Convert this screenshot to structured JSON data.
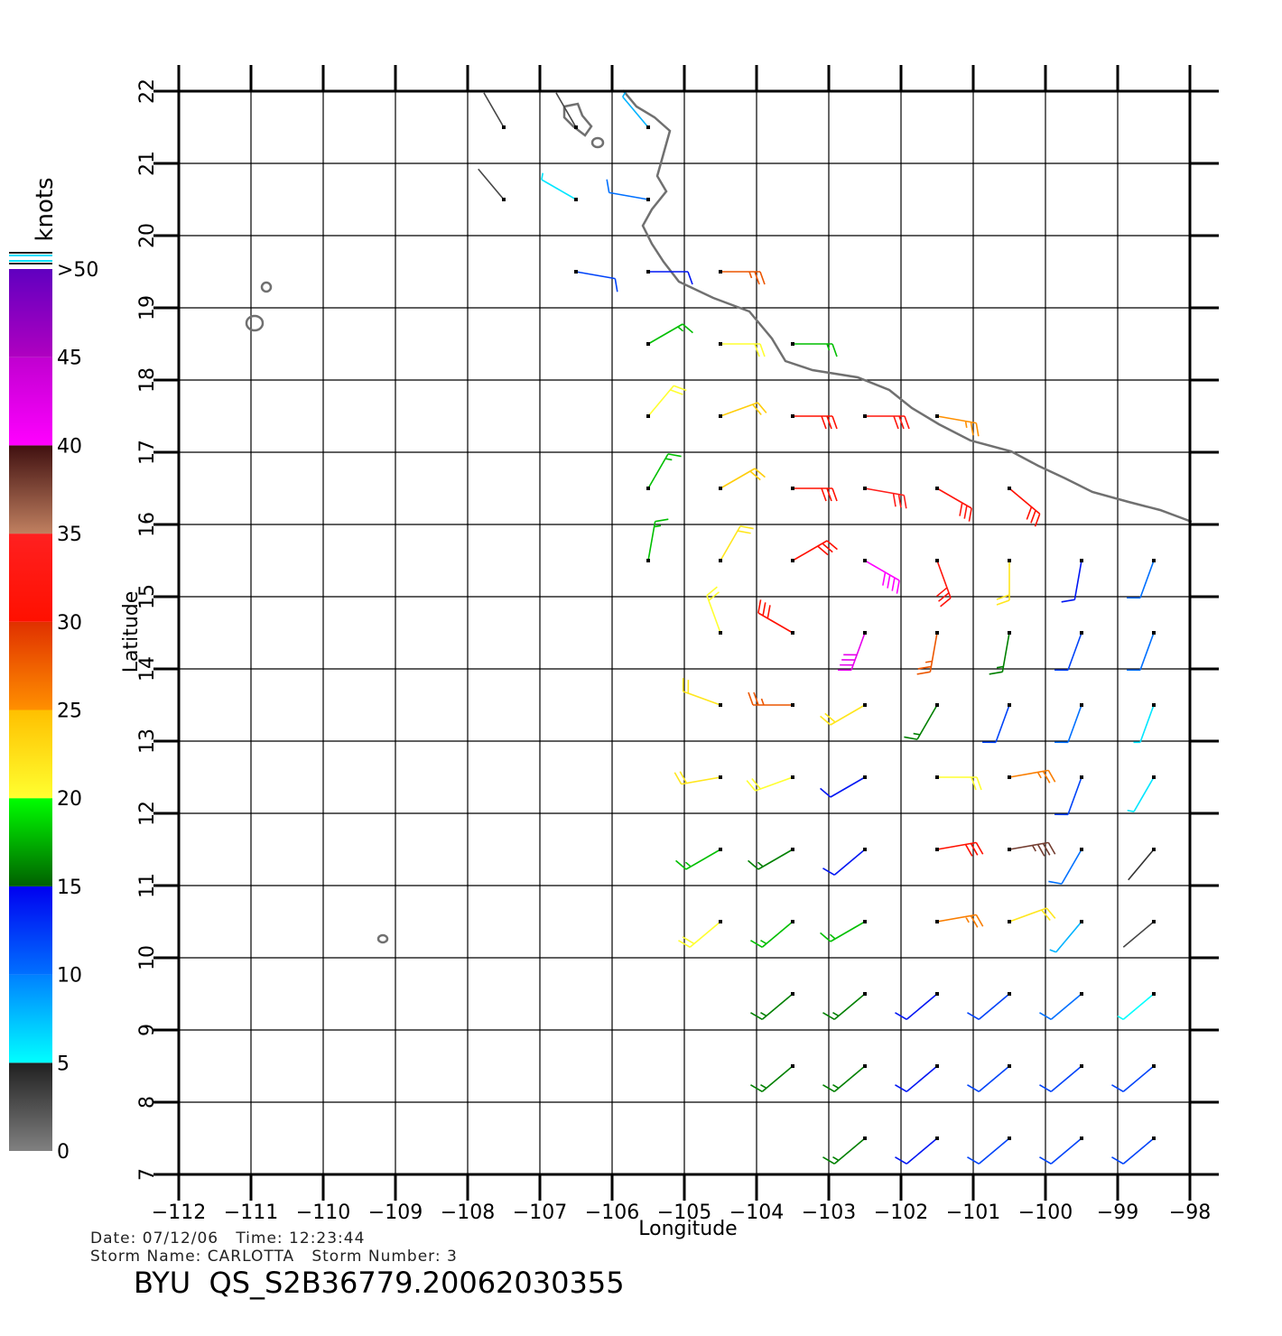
{
  "header": {
    "date_line": "Date: 07/12/06   Time: 12:23:44",
    "storm_line": "Storm Name: CARLOTTA   Storm Number: 3",
    "product": "BYU  QS_S2B36779.20062030355"
  },
  "map": {
    "xlabel": "Longitude",
    "ylabel": "Latitude",
    "xlim": [
      -112,
      -98
    ],
    "ylim": [
      7,
      22
    ],
    "xticks": [
      -112,
      -111,
      -110,
      -109,
      -108,
      -107,
      -106,
      -105,
      -104,
      -103,
      -102,
      -101,
      -100,
      -99,
      -98
    ],
    "yticks": [
      7,
      8,
      9,
      10,
      11,
      12,
      13,
      14,
      15,
      16,
      17,
      18,
      19,
      20,
      21,
      22
    ],
    "grid": true
  },
  "colorbar": {
    "title": "knots",
    "ticks": [
      0,
      5,
      10,
      15,
      20,
      25,
      30,
      35,
      40,
      45,
      {
        "value": 50,
        "label": ">50"
      }
    ],
    "colors": [
      [
        "#808080",
        "#202020"
      ],
      [
        "#00ffff",
        "#0080ff"
      ],
      [
        "#0070ff",
        "#0000f0"
      ],
      [
        "#006000",
        "#00ff00"
      ],
      [
        "#ffff30",
        "#ffc000"
      ],
      [
        "#ff9000",
        "#e03000"
      ],
      [
        "#ff1000",
        "#ff2020"
      ],
      [
        "#c08060",
        "#401010"
      ],
      [
        "#ff00ff",
        "#c000d0"
      ],
      [
        "#b000c0",
        "#6000c0"
      ]
    ]
  },
  "wind": {
    "lats": [
      21.5,
      20.5,
      19.5,
      18.5,
      17.5,
      16.5,
      15.5,
      14.5,
      13.5,
      12.5,
      11.5,
      10.5,
      9.5,
      8.5,
      7.5
    ],
    "lons": [
      -111.5,
      -110.5,
      -109.5,
      -108.5,
      -107.5,
      -106.5,
      -105.5,
      -104.5,
      -103.5,
      -102.5,
      -101.5,
      -100.5,
      -99.5,
      -98.5
    ],
    "speed": [
      [
        null,
        null,
        null,
        null,
        3,
        3,
        8,
        null,
        null,
        null,
        null,
        null,
        null,
        null
      ],
      [
        null,
        null,
        null,
        null,
        3,
        6,
        10,
        null,
        null,
        null,
        null,
        null,
        null,
        null
      ],
      [
        null,
        null,
        null,
        null,
        null,
        12,
        14,
        28,
        null,
        null,
        null,
        null,
        null,
        null
      ],
      [
        null,
        null,
        null,
        null,
        null,
        null,
        18,
        20,
        18,
        null,
        null,
        null,
        null,
        null
      ],
      [
        null,
        null,
        null,
        null,
        null,
        null,
        20,
        24,
        30,
        32,
        25,
        null,
        null,
        null
      ],
      [
        null,
        null,
        null,
        null,
        null,
        null,
        18,
        24,
        30,
        34,
        32,
        30,
        null,
        null
      ],
      [
        null,
        null,
        null,
        null,
        null,
        null,
        18,
        22,
        30,
        40,
        32,
        22,
        14,
        10
      ],
      [
        null,
        null,
        null,
        null,
        null,
        null,
        null,
        20,
        30,
        42,
        28,
        16,
        12,
        10
      ],
      [
        null,
        null,
        null,
        null,
        null,
        null,
        null,
        22,
        28,
        22,
        16,
        12,
        10,
        6
      ],
      [
        null,
        null,
        null,
        null,
        null,
        null,
        null,
        22,
        20,
        14,
        20,
        26,
        12,
        6
      ],
      [
        null,
        null,
        null,
        null,
        null,
        null,
        null,
        18,
        16,
        14,
        30,
        38,
        10,
        4
      ],
      [
        null,
        null,
        null,
        null,
        null,
        null,
        null,
        20,
        18,
        18,
        26,
        22,
        8,
        3
      ],
      [
        null,
        null,
        null,
        null,
        null,
        null,
        null,
        null,
        16,
        16,
        14,
        12,
        10,
        5
      ],
      [
        null,
        null,
        null,
        null,
        null,
        null,
        null,
        null,
        16,
        16,
        14,
        12,
        12,
        12
      ],
      [
        null,
        null,
        null,
        null,
        null,
        null,
        null,
        null,
        null,
        16,
        14,
        12,
        12,
        12
      ]
    ],
    "direction": [
      [
        null,
        null,
        null,
        null,
        330,
        330,
        320,
        null,
        null,
        null,
        null,
        null,
        null,
        null
      ],
      [
        null,
        null,
        null,
        null,
        320,
        300,
        280,
        null,
        null,
        null,
        null,
        null,
        null,
        null
      ],
      [
        null,
        null,
        null,
        null,
        null,
        100,
        90,
        90,
        null,
        null,
        null,
        null,
        null,
        null
      ],
      [
        null,
        null,
        null,
        null,
        null,
        null,
        60,
        90,
        90,
        null,
        null,
        null,
        null,
        null
      ],
      [
        null,
        null,
        null,
        null,
        null,
        null,
        40,
        70,
        90,
        90,
        100,
        null,
        null,
        null
      ],
      [
        null,
        null,
        null,
        null,
        null,
        null,
        30,
        60,
        90,
        100,
        120,
        130,
        null,
        null
      ],
      [
        null,
        null,
        null,
        null,
        null,
        null,
        10,
        30,
        60,
        120,
        160,
        180,
        190,
        200
      ],
      [
        null,
        null,
        null,
        null,
        null,
        null,
        null,
        340,
        300,
        200,
        190,
        190,
        200,
        200
      ],
      [
        null,
        null,
        null,
        null,
        null,
        null,
        null,
        290,
        270,
        240,
        210,
        200,
        200,
        200
      ],
      [
        null,
        null,
        null,
        null,
        null,
        null,
        null,
        260,
        250,
        240,
        90,
        80,
        200,
        210
      ],
      [
        null,
        null,
        null,
        null,
        null,
        null,
        null,
        240,
        240,
        230,
        80,
        80,
        210,
        220
      ],
      [
        null,
        null,
        null,
        null,
        null,
        null,
        null,
        230,
        230,
        240,
        80,
        70,
        220,
        230
      ],
      [
        null,
        null,
        null,
        null,
        null,
        null,
        null,
        null,
        230,
        230,
        230,
        230,
        230,
        230
      ],
      [
        null,
        null,
        null,
        null,
        null,
        null,
        null,
        null,
        230,
        230,
        230,
        230,
        230,
        230
      ],
      [
        null,
        null,
        null,
        null,
        null,
        null,
        null,
        null,
        null,
        230,
        230,
        230,
        230,
        230
      ]
    ]
  }
}
